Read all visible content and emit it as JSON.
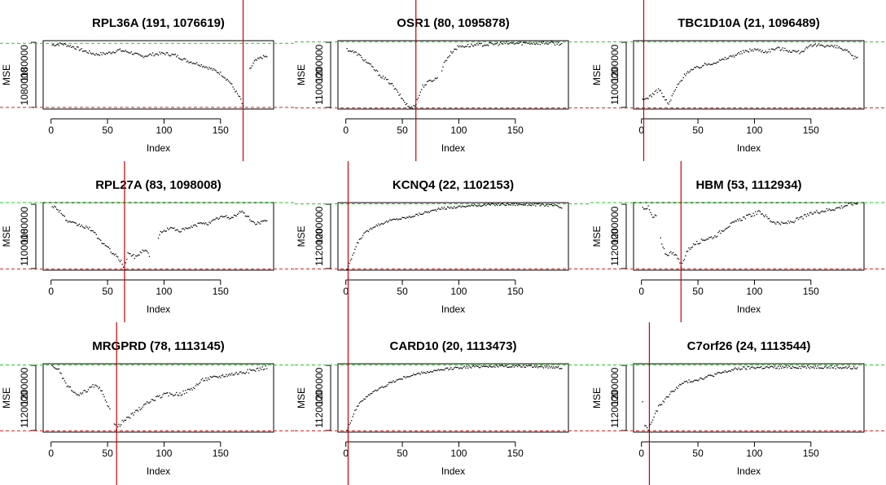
{
  "charts": [
    {
      "title": "RPL36A (191, 1076619)",
      "xlabel": "Index",
      "ylabel": "MSE",
      "xticks": [
        "0",
        "50",
        "100",
        "150"
      ],
      "yticks": [
        "1080000",
        "1180000"
      ],
      "chart_data": {
        "type": "scatter",
        "x_range": [
          1,
          191
        ],
        "ylim": [
          1080000,
          1210000
        ],
        "vline_x": 170,
        "hline_min": 1083000,
        "hline_max": 1205000,
        "curve_points": [
          [
            1,
            1202000
          ],
          [
            10,
            1204000
          ],
          [
            20,
            1198000
          ],
          [
            30,
            1190000
          ],
          [
            40,
            1184000
          ],
          [
            50,
            1186000
          ],
          [
            60,
            1192000
          ],
          [
            70,
            1188000
          ],
          [
            80,
            1180000
          ],
          [
            90,
            1184000
          ],
          [
            100,
            1186000
          ],
          [
            110,
            1182000
          ],
          [
            120,
            1172000
          ],
          [
            130,
            1166000
          ],
          [
            140,
            1158000
          ],
          [
            150,
            1148000
          ],
          [
            158,
            1132000
          ],
          [
            163,
            1115000
          ],
          [
            168,
            1098000
          ],
          [
            170,
            1083000
          ],
          [
            172,
            1100000
          ],
          [
            176,
            1155000
          ],
          [
            180,
            1170000
          ],
          [
            186,
            1178000
          ],
          [
            191,
            1180000
          ]
        ],
        "gaps": [
          [
            171,
            175
          ]
        ],
        "jitter": 3000
      }
    },
    {
      "title": "OSR1 (80, 1095878)",
      "xlabel": "Index",
      "ylabel": "MSE",
      "xticks": [
        "0",
        "50",
        "100",
        "150"
      ],
      "yticks": [
        "1100000",
        "1200000"
      ],
      "chart_data": {
        "type": "scatter",
        "x_range": [
          1,
          191
        ],
        "ylim": [
          1095000,
          1215000
        ],
        "vline_x": 62,
        "hline_min": 1097000,
        "hline_max": 1213000,
        "curve_points": [
          [
            1,
            1200000
          ],
          [
            10,
            1192000
          ],
          [
            20,
            1175000
          ],
          [
            30,
            1155000
          ],
          [
            40,
            1140000
          ],
          [
            48,
            1118000
          ],
          [
            55,
            1100000
          ],
          [
            58,
            1097000
          ],
          [
            62,
            1105000
          ],
          [
            68,
            1135000
          ],
          [
            75,
            1145000
          ],
          [
            82,
            1150000
          ],
          [
            88,
            1180000
          ],
          [
            95,
            1198000
          ],
          [
            100,
            1205000
          ],
          [
            120,
            1208000
          ],
          [
            140,
            1210000
          ],
          [
            160,
            1211000
          ],
          [
            180,
            1211000
          ],
          [
            191,
            1210000
          ]
        ],
        "gaps": [
          [
            82,
            84
          ]
        ],
        "jitter": 3000
      }
    },
    {
      "title": "TBC1D10A (21, 1096489)",
      "xlabel": "Index",
      "ylabel": "MSE",
      "xticks": [
        "0",
        "50",
        "100",
        "150"
      ],
      "yticks": [
        "1100000",
        "1200000"
      ],
      "chart_data": {
        "type": "scatter",
        "x_range": [
          1,
          191
        ],
        "ylim": [
          1095000,
          1215000
        ],
        "vline_x": 2,
        "hline_min": 1097000,
        "hline_max": 1213000,
        "curve_points": [
          [
            1,
            1110000
          ],
          [
            8,
            1118000
          ],
          [
            16,
            1130000
          ],
          [
            20,
            1115000
          ],
          [
            24,
            1103000
          ],
          [
            30,
            1130000
          ],
          [
            40,
            1160000
          ],
          [
            55,
            1172000
          ],
          [
            70,
            1180000
          ],
          [
            80,
            1188000
          ],
          [
            90,
            1195000
          ],
          [
            100,
            1200000
          ],
          [
            110,
            1196000
          ],
          [
            120,
            1202000
          ],
          [
            130,
            1198000
          ],
          [
            140,
            1195000
          ],
          [
            150,
            1205000
          ],
          [
            158,
            1208000
          ],
          [
            165,
            1206000
          ],
          [
            175,
            1203000
          ],
          [
            182,
            1196000
          ],
          [
            188,
            1185000
          ]
        ],
        "gaps": [],
        "jitter": 3000
      }
    },
    {
      "title": "RPL27A (83, 1098008)",
      "xlabel": "Index",
      "ylabel": "MSE",
      "xticks": [
        "0",
        "50",
        "100",
        "150"
      ],
      "yticks": [
        "1100000",
        "1180000"
      ],
      "chart_data": {
        "type": "scatter",
        "x_range": [
          1,
          191
        ],
        "ylim": [
          1095000,
          1215000
        ],
        "vline_x": 65,
        "hline_min": 1097000,
        "hline_max": 1215000,
        "curve_points": [
          [
            1,
            1210000
          ],
          [
            8,
            1200000
          ],
          [
            15,
            1180000
          ],
          [
            25,
            1175000
          ],
          [
            35,
            1168000
          ],
          [
            45,
            1145000
          ],
          [
            55,
            1125000
          ],
          [
            62,
            1110000
          ],
          [
            65,
            1098000
          ],
          [
            68,
            1125000
          ],
          [
            75,
            1118000
          ],
          [
            82,
            1132000
          ],
          [
            86,
            1125000
          ],
          [
            90,
            1112000
          ],
          [
            96,
            1160000
          ],
          [
            105,
            1170000
          ],
          [
            115,
            1165000
          ],
          [
            125,
            1172000
          ],
          [
            135,
            1180000
          ],
          [
            140,
            1178000
          ],
          [
            150,
            1190000
          ],
          [
            160,
            1188000
          ],
          [
            168,
            1200000
          ],
          [
            175,
            1188000
          ],
          [
            180,
            1178000
          ],
          [
            185,
            1180000
          ],
          [
            191,
            1182000
          ]
        ],
        "gaps": [
          [
            88,
            94
          ]
        ],
        "jitter": 3000
      }
    },
    {
      "title": "KCNQ4 (22, 1102153)",
      "xlabel": "Index",
      "ylabel": "MSE",
      "xticks": [
        "0",
        "50",
        "100",
        "150"
      ],
      "yticks": [
        "1120000",
        "1200000"
      ],
      "chart_data": {
        "type": "scatter",
        "x_range": [
          1,
          191
        ],
        "ylim": [
          1100000,
          1215000
        ],
        "vline_x": 2,
        "hline_min": 1102000,
        "hline_max": 1213000,
        "curve_points": [
          [
            1,
            1102000
          ],
          [
            3,
            1110000
          ],
          [
            6,
            1125000
          ],
          [
            10,
            1145000
          ],
          [
            15,
            1160000
          ],
          [
            25,
            1175000
          ],
          [
            40,
            1185000
          ],
          [
            55,
            1190000
          ],
          [
            70,
            1198000
          ],
          [
            85,
            1205000
          ],
          [
            100,
            1208000
          ],
          [
            120,
            1211000
          ],
          [
            140,
            1212000
          ],
          [
            160,
            1212000
          ],
          [
            175,
            1211000
          ],
          [
            185,
            1210000
          ],
          [
            191,
            1206000
          ]
        ],
        "gaps": [],
        "jitter": 2000
      }
    },
    {
      "title": "HBM (53, 1112934)",
      "xlabel": "Index",
      "ylabel": "MSE",
      "xticks": [
        "0",
        "50",
        "100",
        "150"
      ],
      "yticks": [
        "1120000",
        "1200000"
      ],
      "chart_data": {
        "type": "scatter",
        "x_range": [
          1,
          191
        ],
        "ylim": [
          1110000,
          1220000
        ],
        "vline_x": 35,
        "hline_min": 1112000,
        "hline_max": 1220000,
        "curve_points": [
          [
            1,
            1212000
          ],
          [
            6,
            1212000
          ],
          [
            10,
            1195000
          ],
          [
            14,
            1200000
          ],
          [
            18,
            1150000
          ],
          [
            22,
            1135000
          ],
          [
            28,
            1140000
          ],
          [
            32,
            1130000
          ],
          [
            35,
            1115000
          ],
          [
            40,
            1140000
          ],
          [
            45,
            1150000
          ],
          [
            55,
            1160000
          ],
          [
            65,
            1165000
          ],
          [
            75,
            1180000
          ],
          [
            90,
            1195000
          ],
          [
            105,
            1205000
          ],
          [
            115,
            1190000
          ],
          [
            125,
            1185000
          ],
          [
            135,
            1190000
          ],
          [
            145,
            1198000
          ],
          [
            155,
            1205000
          ],
          [
            165,
            1208000
          ],
          [
            175,
            1212000
          ],
          [
            185,
            1218000
          ],
          [
            191,
            1219000
          ]
        ],
        "gaps": [
          [
            14,
            16
          ]
        ],
        "jitter": 3000
      }
    },
    {
      "title": "MRGPRD (78, 1113145)",
      "xlabel": "Index",
      "ylabel": "MSE",
      "xticks": [
        "0",
        "50",
        "100",
        "150"
      ],
      "yticks": [
        "1120000",
        "1200000"
      ],
      "chart_data": {
        "type": "scatter",
        "x_range": [
          1,
          191
        ],
        "ylim": [
          1110000,
          1220000
        ],
        "vline_x": 58,
        "hline_min": 1112000,
        "hline_max": 1218000,
        "curve_points": [
          [
            1,
            1215000
          ],
          [
            6,
            1213000
          ],
          [
            12,
            1190000
          ],
          [
            18,
            1178000
          ],
          [
            24,
            1168000
          ],
          [
            30,
            1175000
          ],
          [
            38,
            1185000
          ],
          [
            44,
            1178000
          ],
          [
            48,
            1160000
          ],
          [
            52,
            1150000
          ],
          [
            56,
            1125000
          ],
          [
            58,
            1115000
          ],
          [
            62,
            1125000
          ],
          [
            70,
            1135000
          ],
          [
            80,
            1150000
          ],
          [
            90,
            1162000
          ],
          [
            100,
            1170000
          ],
          [
            115,
            1172000
          ],
          [
            125,
            1180000
          ],
          [
            135,
            1195000
          ],
          [
            145,
            1198000
          ],
          [
            155,
            1202000
          ],
          [
            165,
            1205000
          ],
          [
            175,
            1208000
          ],
          [
            185,
            1212000
          ],
          [
            191,
            1215000
          ]
        ],
        "gaps": [
          [
            53,
            55
          ]
        ],
        "jitter": 3000
      }
    },
    {
      "title": "CARD10 (20, 1113473)",
      "xlabel": "Index",
      "ylabel": "MSE",
      "xticks": [
        "0",
        "50",
        "100",
        "150"
      ],
      "yticks": [
        "1120000",
        "1200000"
      ],
      "chart_data": {
        "type": "scatter",
        "x_range": [
          1,
          191
        ],
        "ylim": [
          1110000,
          1220000
        ],
        "vline_x": 2,
        "hline_min": 1112000,
        "hline_max": 1218000,
        "curve_points": [
          [
            1,
            1115000
          ],
          [
            4,
            1125000
          ],
          [
            8,
            1145000
          ],
          [
            14,
            1160000
          ],
          [
            20,
            1170000
          ],
          [
            30,
            1180000
          ],
          [
            40,
            1190000
          ],
          [
            55,
            1200000
          ],
          [
            70,
            1206000
          ],
          [
            85,
            1210000
          ],
          [
            100,
            1214000
          ],
          [
            120,
            1216000
          ],
          [
            140,
            1216000
          ],
          [
            160,
            1216000
          ],
          [
            180,
            1215000
          ],
          [
            191,
            1214000
          ]
        ],
        "gaps": [],
        "jitter": 2000
      }
    },
    {
      "title": "C7orf26 (24, 1113544)",
      "xlabel": "Index",
      "ylabel": "MSE",
      "xticks": [
        "0",
        "50",
        "100",
        "150"
      ],
      "yticks": [
        "1120000",
        "1200000"
      ],
      "chart_data": {
        "type": "scatter",
        "x_range": [
          1,
          191
        ],
        "ylim": [
          1110000,
          1220000
        ],
        "vline_x": 7,
        "hline_min": 1112000,
        "hline_max": 1218000,
        "curve_points": [
          [
            1,
            1160000
          ],
          [
            3,
            1120000
          ],
          [
            6,
            1115000
          ],
          [
            10,
            1130000
          ],
          [
            15,
            1150000
          ],
          [
            22,
            1165000
          ],
          [
            30,
            1180000
          ],
          [
            38,
            1190000
          ],
          [
            50,
            1195000
          ],
          [
            60,
            1200000
          ],
          [
            70,
            1205000
          ],
          [
            85,
            1212000
          ],
          [
            100,
            1214000
          ],
          [
            120,
            1214000
          ],
          [
            140,
            1215000
          ],
          [
            160,
            1215000
          ],
          [
            180,
            1214000
          ],
          [
            191,
            1213000
          ]
        ],
        "gaps": [
          [
            2,
            2
          ]
        ],
        "jitter": 2500
      }
    }
  ]
}
